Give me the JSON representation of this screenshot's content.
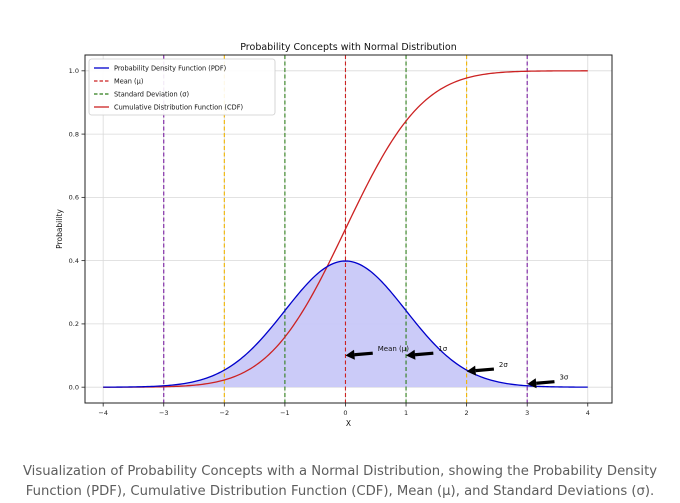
{
  "chart_data": {
    "type": "line",
    "title": "Probability Concepts with Normal Distribution",
    "xlabel": "X",
    "ylabel": "Probability",
    "xlim": [
      -4.3,
      4.4
    ],
    "ylim": [
      -0.05,
      1.05
    ],
    "x_ticks": [
      -4,
      -3,
      -2,
      -1,
      0,
      1,
      2,
      3,
      4
    ],
    "y_ticks": [
      0.0,
      0.2,
      0.4,
      0.6,
      0.8,
      1.0
    ],
    "x_tick_labels": [
      "−4",
      "−3",
      "−2",
      "−1",
      "0",
      "1",
      "2",
      "3",
      "4"
    ],
    "y_tick_labels": [
      "0.0",
      "0.2",
      "0.4",
      "0.6",
      "0.8",
      "1.0"
    ],
    "grid": true,
    "legend_position": "top-left",
    "series": [
      {
        "name": "Probability Density Function (PDF)",
        "color": "#0000cc",
        "style": "solid",
        "x": [
          -4,
          -3.5,
          -3,
          -2.5,
          -2,
          -1.75,
          -1.5,
          -1.25,
          -1,
          -0.75,
          -0.5,
          -0.25,
          0,
          0.25,
          0.5,
          0.75,
          1,
          1.25,
          1.5,
          1.75,
          2,
          2.5,
          3,
          3.5,
          4
        ],
        "y": [
          0.0001,
          0.0009,
          0.0044,
          0.0175,
          0.054,
          0.0863,
          0.1295,
          0.1826,
          0.242,
          0.3011,
          0.3521,
          0.3867,
          0.3989,
          0.3867,
          0.3521,
          0.3011,
          0.242,
          0.1826,
          0.1295,
          0.0863,
          0.054,
          0.0175,
          0.0044,
          0.0009,
          0.0001
        ],
        "fill": "#c8c8f8"
      },
      {
        "name": "Cumulative Distribution Function (CDF)",
        "color": "#cc2222",
        "style": "solid",
        "x": [
          -4,
          -3.5,
          -3,
          -2.5,
          -2,
          -1.75,
          -1.5,
          -1.25,
          -1,
          -0.75,
          -0.5,
          -0.25,
          0,
          0.25,
          0.5,
          0.75,
          1,
          1.25,
          1.5,
          1.75,
          2,
          2.5,
          3,
          3.5,
          4
        ],
        "y": [
          0.0,
          0.0002,
          0.0013,
          0.0062,
          0.0228,
          0.0401,
          0.0668,
          0.1056,
          0.1587,
          0.2266,
          0.3085,
          0.4013,
          0.5,
          0.5987,
          0.6915,
          0.7734,
          0.8413,
          0.8944,
          0.9332,
          0.9599,
          0.9772,
          0.9938,
          0.9987,
          0.9998,
          1.0
        ]
      }
    ],
    "vertical_lines": [
      {
        "legend": "Mean (μ)",
        "x": [
          0
        ],
        "color": "#cc2222",
        "style": "dashed"
      },
      {
        "legend": "Standard Deviation (σ)",
        "x": [
          -1,
          1
        ],
        "color": "#2e7d1a",
        "style": "dashed"
      },
      {
        "legend": "",
        "x": [
          -2,
          2
        ],
        "color": "#f0b400",
        "style": "dashed"
      },
      {
        "legend": "",
        "x": [
          -3,
          3
        ],
        "color": "#7a1fa2",
        "style": "dashed"
      }
    ],
    "legend": [
      {
        "label": "Probability Density Function (PDF)",
        "color": "#0000cc",
        "style": "solid"
      },
      {
        "label": "Mean (μ)",
        "color": "#cc2222",
        "style": "dashed"
      },
      {
        "label": "Standard Deviation (σ)",
        "color": "#2e7d1a",
        "style": "dashed"
      },
      {
        "label": "Cumulative Distribution Function (CDF)",
        "color": "#cc2222",
        "style": "solid"
      }
    ],
    "annotations": [
      {
        "text": "Mean (μ)",
        "x": 0.5,
        "y": 0.12,
        "arrow_to": [
          0,
          0.1
        ]
      },
      {
        "text": "1σ",
        "x": 1.5,
        "y": 0.12,
        "arrow_to": [
          1,
          0.1
        ]
      },
      {
        "text": "2σ",
        "x": 2.5,
        "y": 0.07,
        "arrow_to": [
          2,
          0.05
        ]
      },
      {
        "text": "3σ",
        "x": 3.5,
        "y": 0.03,
        "arrow_to": [
          3,
          0.01
        ]
      }
    ]
  },
  "caption": "Visualization of Probability Concepts with a Normal Distribution, showing the Probability Density Function (PDF), Cumulative Distribution Function (CDF), Mean (μ), and Standard Deviations (σ)."
}
